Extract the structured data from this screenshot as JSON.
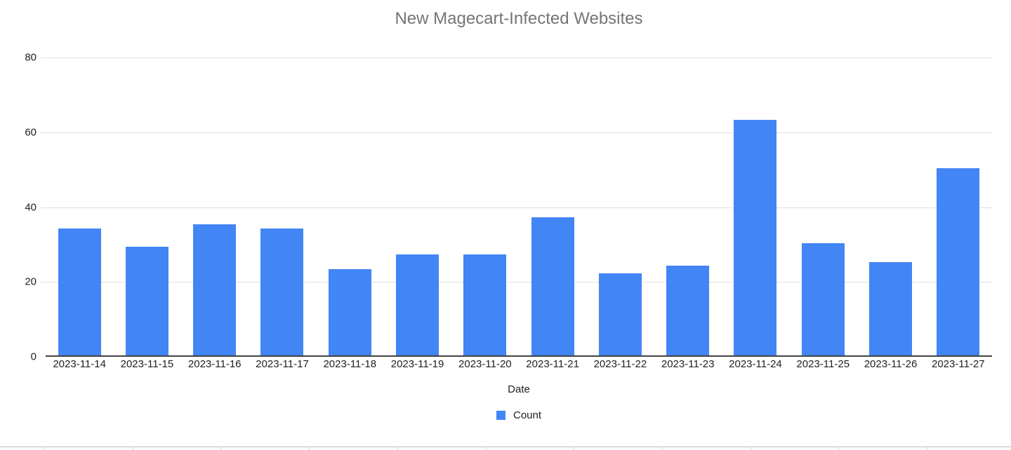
{
  "chart_data": {
    "type": "bar",
    "title": "New Magecart-Infected Websites",
    "categories": [
      "2023-11-14",
      "2023-11-15",
      "2023-11-16",
      "2023-11-17",
      "2023-11-18",
      "2023-11-19",
      "2023-11-20",
      "2023-11-21",
      "2023-11-22",
      "2023-11-23",
      "2023-11-24",
      "2023-11-25",
      "2023-11-26",
      "2023-11-27"
    ],
    "values": [
      34,
      29,
      35,
      34,
      23,
      27,
      27,
      37,
      22,
      24,
      63,
      30,
      25,
      50
    ],
    "xlabel": "Date",
    "ylabel": "",
    "ylim": [
      0,
      80
    ],
    "yticks": [
      0,
      20,
      40,
      60,
      80
    ],
    "grid": true,
    "legend": [
      "Count"
    ],
    "legend_position": "bottom"
  },
  "colors": {
    "bar": "#4285f4",
    "title_text": "#757575",
    "axis_text": "#212121",
    "gridline": "#e0e0e0",
    "axis_line": "#424242"
  }
}
